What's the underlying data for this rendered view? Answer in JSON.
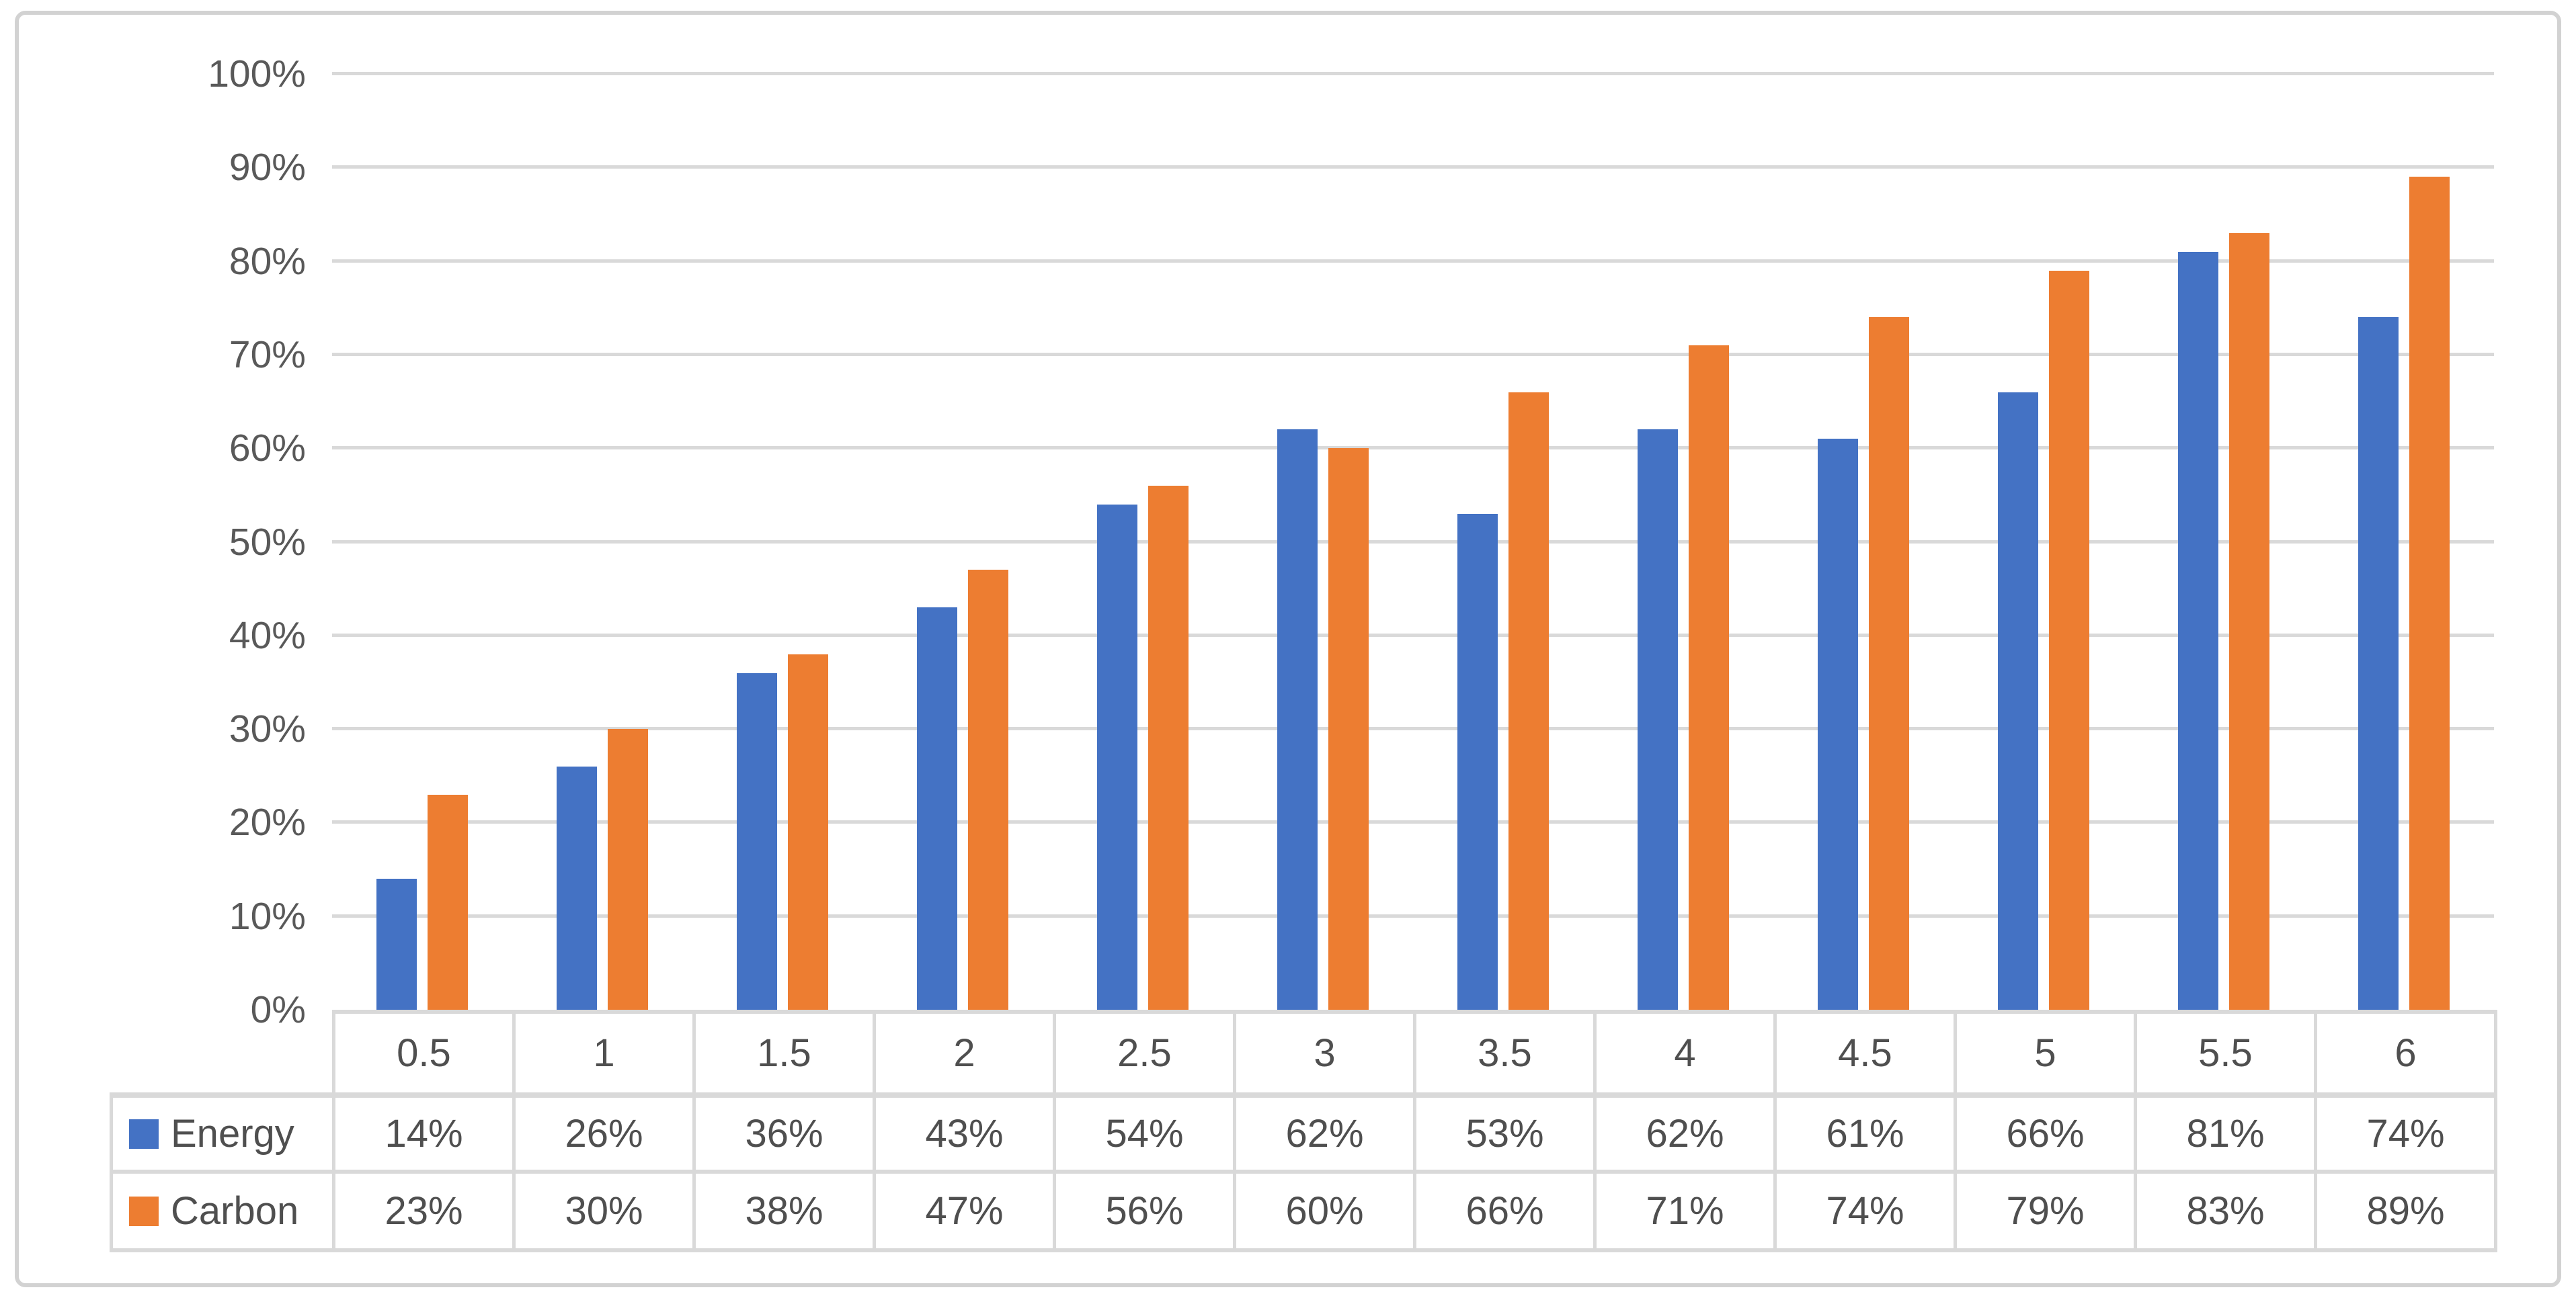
{
  "chart_data": {
    "type": "bar",
    "title": "",
    "xlabel": "",
    "ylabel": "",
    "categories": [
      "0.5",
      "1",
      "1.5",
      "2",
      "2.5",
      "3",
      "3.5",
      "4",
      "4.5",
      "5",
      "5.5",
      "6"
    ],
    "series": [
      {
        "name": "Energy",
        "color": "#4472C4",
        "values": [
          14,
          26,
          36,
          43,
          54,
          62,
          53,
          62,
          61,
          66,
          81,
          74
        ]
      },
      {
        "name": "Carbon",
        "color": "#ED7D31",
        "values": [
          23,
          30,
          38,
          47,
          56,
          60,
          66,
          71,
          74,
          79,
          83,
          89
        ]
      }
    ],
    "y_axis": {
      "min": 0,
      "max": 100,
      "step": 10,
      "tick_labels": [
        "0%",
        "10%",
        "20%",
        "30%",
        "40%",
        "50%",
        "60%",
        "70%",
        "80%",
        "90%",
        "100%"
      ]
    },
    "grid": true,
    "legend_position": "data-table-left",
    "data_table": {
      "rows": [
        {
          "label": "Energy",
          "key_color": "#4472C4",
          "cells": [
            "14%",
            "26%",
            "36%",
            "43%",
            "54%",
            "62%",
            "53%",
            "62%",
            "61%",
            "66%",
            "81%",
            "74%"
          ]
        },
        {
          "label": "Carbon",
          "key_color": "#ED7D31",
          "cells": [
            "23%",
            "30%",
            "38%",
            "47%",
            "56%",
            "60%",
            "66%",
            "71%",
            "74%",
            "79%",
            "83%",
            "89%"
          ]
        }
      ]
    }
  },
  "colors": {
    "background": "#FFFFFF",
    "frame_border": "#D2D2D2",
    "gridline": "#D9D9D9",
    "table_border": "#D9D9D9",
    "axis_text": "#595959",
    "table_text": "#4F4F4F",
    "energy": "#4472C4",
    "carbon": "#ED7D31"
  }
}
